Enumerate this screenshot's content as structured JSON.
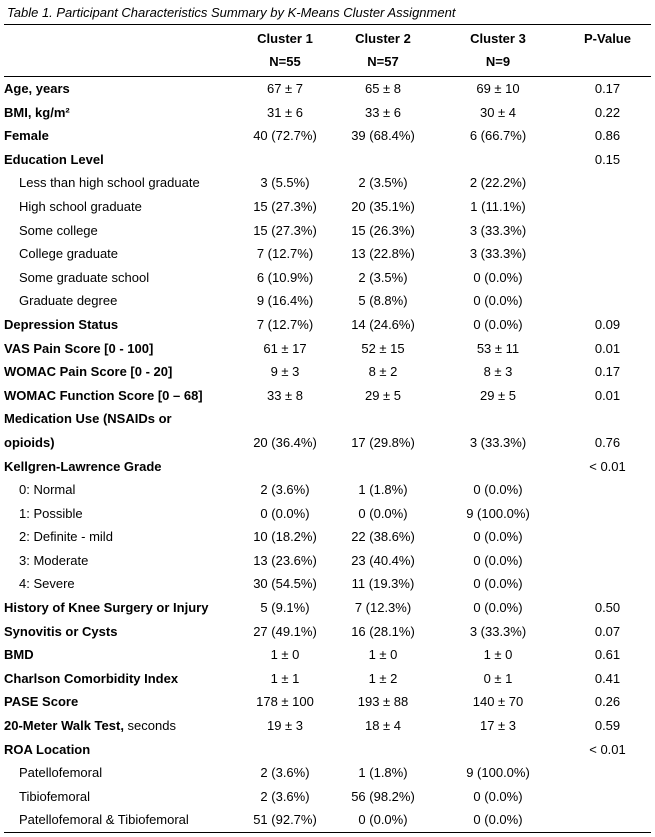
{
  "title": "Table 1. Participant Characteristics Summary by K-Means Cluster Assignment",
  "header": {
    "label_col": "",
    "cluster1": "Cluster 1\nN=55",
    "cluster2": "Cluster 2\nN=57",
    "cluster3": "Cluster 3\nN=9",
    "pvalue": "P-Value"
  },
  "rows": [
    {
      "label": "Age, years",
      "bold": true,
      "indent": false,
      "c1": "67 ± 7",
      "c2": "65 ± 8",
      "c3": "69 ± 10",
      "p": "0.17"
    },
    {
      "label": "BMI, kg/m²",
      "bold": true,
      "indent": false,
      "c1": "31 ± 6",
      "c2": "33 ± 6",
      "c3": "30 ± 4",
      "p": "0.22"
    },
    {
      "label": "Female",
      "bold": true,
      "indent": false,
      "c1": "40 (72.7%)",
      "c2": "39 (68.4%)",
      "c3": "6 (66.7%)",
      "p": "0.86"
    },
    {
      "label": "Education Level",
      "bold": true,
      "indent": false,
      "c1": "",
      "c2": "",
      "c3": "",
      "p": "0.15"
    },
    {
      "label": "Less than high school graduate",
      "bold": false,
      "indent": true,
      "c1": "3 (5.5%)",
      "c2": "2 (3.5%)",
      "c3": "2 (22.2%)",
      "p": ""
    },
    {
      "label": "High school graduate",
      "bold": false,
      "indent": true,
      "c1": "15 (27.3%)",
      "c2": "20 (35.1%)",
      "c3": "1 (11.1%)",
      "p": ""
    },
    {
      "label": "Some college",
      "bold": false,
      "indent": true,
      "c1": "15 (27.3%)",
      "c2": "15 (26.3%)",
      "c3": "3 (33.3%)",
      "p": ""
    },
    {
      "label": "College graduate",
      "bold": false,
      "indent": true,
      "c1": "7 (12.7%)",
      "c2": "13 (22.8%)",
      "c3": "3 (33.3%)",
      "p": ""
    },
    {
      "label": "Some graduate school",
      "bold": false,
      "indent": true,
      "c1": "6 (10.9%)",
      "c2": "2 (3.5%)",
      "c3": "0 (0.0%)",
      "p": ""
    },
    {
      "label": "Graduate degree",
      "bold": false,
      "indent": true,
      "c1": "9 (16.4%)",
      "c2": "5 (8.8%)",
      "c3": "0 (0.0%)",
      "p": ""
    },
    {
      "label": "Depression Status",
      "bold": true,
      "indent": false,
      "c1": "7 (12.7%)",
      "c2": "14 (24.6%)",
      "c3": "0 (0.0%)",
      "p": "0.09"
    },
    {
      "label": "VAS Pain Score [0 - 100]",
      "bold": true,
      "indent": false,
      "c1": "61 ± 17",
      "c2": "52 ± 15",
      "c3": "53 ± 11",
      "p": "0.01"
    },
    {
      "label": "WOMAC Pain Score [0 - 20]",
      "bold": true,
      "indent": false,
      "c1": "9 ± 3",
      "c2": "8 ± 2",
      "c3": "8 ± 3",
      "p": "0.17"
    },
    {
      "label": "WOMAC Function Score [0 – 68]",
      "bold": true,
      "indent": false,
      "c1": "33 ± 8",
      "c2": "29 ± 5",
      "c3": "29 ± 5",
      "p": "0.01"
    },
    {
      "label": "Medication Use (NSAIDs or\nopioids)",
      "bold": true,
      "indent": false,
      "c1": "20 (36.4%)",
      "c2": "17 (29.8%)",
      "c3": "3 (33.3%)",
      "p": "0.76"
    },
    {
      "label": "Kellgren-Lawrence Grade",
      "bold": true,
      "indent": false,
      "c1": "",
      "c2": "",
      "c3": "",
      "p": "< 0.01"
    },
    {
      "label": "0: Normal",
      "bold": false,
      "indent": true,
      "c1": "2 (3.6%)",
      "c2": "1 (1.8%)",
      "c3": "0 (0.0%)",
      "p": ""
    },
    {
      "label": "1: Possible",
      "bold": false,
      "indent": true,
      "c1": "0 (0.0%)",
      "c2": "0 (0.0%)",
      "c3": "9 (100.0%)",
      "p": ""
    },
    {
      "label": "2: Definite - mild",
      "bold": false,
      "indent": true,
      "c1": "10 (18.2%)",
      "c2": "22 (38.6%)",
      "c3": "0 (0.0%)",
      "p": ""
    },
    {
      "label": "3: Moderate",
      "bold": false,
      "indent": true,
      "c1": "13 (23.6%)",
      "c2": "23 (40.4%)",
      "c3": "0 (0.0%)",
      "p": ""
    },
    {
      "label": "4: Severe",
      "bold": false,
      "indent": true,
      "c1": "30 (54.5%)",
      "c2": "11 (19.3%)",
      "c3": "0 (0.0%)",
      "p": ""
    },
    {
      "label": "History of Knee Surgery or Injury",
      "bold": true,
      "indent": false,
      "c1": "5 (9.1%)",
      "c2": "7 (12.3%)",
      "c3": "0 (0.0%)",
      "p": "0.50"
    },
    {
      "label": "Synovitis or Cysts",
      "bold": true,
      "indent": false,
      "c1": "27 (49.1%)",
      "c2": "16 (28.1%)",
      "c3": "3 (33.3%)",
      "p": "0.07"
    },
    {
      "label": "BMD",
      "bold": true,
      "indent": false,
      "c1": "1 ± 0",
      "c2": "1 ± 0",
      "c3": "1 ± 0",
      "p": "0.61"
    },
    {
      "label": "Charlson Comorbidity Index",
      "bold": true,
      "indent": false,
      "c1": "1 ± 1",
      "c2": "1 ± 2",
      "c3": "0 ± 1",
      "p": "0.41"
    },
    {
      "label": "PASE Score",
      "bold": true,
      "indent": false,
      "c1": "178 ± 100",
      "c2": "193 ± 88",
      "c3": "140 ± 70",
      "p": "0.26"
    },
    {
      "label": "20-Meter Walk Test,",
      "label_regular": " seconds",
      "bold": true,
      "indent": false,
      "c1": "19 ± 3",
      "c2": "18 ± 4",
      "c3": "17 ± 3",
      "p": "0.59"
    },
    {
      "label": "ROA Location",
      "bold": true,
      "indent": false,
      "c1": "",
      "c2": "",
      "c3": "",
      "p": "< 0.01"
    },
    {
      "label": "Patellofemoral",
      "bold": false,
      "indent": true,
      "c1": "2 (3.6%)",
      "c2": "1 (1.8%)",
      "c3": "9 (100.0%)",
      "p": ""
    },
    {
      "label": "Tibiofemoral",
      "bold": false,
      "indent": true,
      "c1": "2 (3.6%)",
      "c2": "56 (98.2%)",
      "c3": "0 (0.0%)",
      "p": ""
    },
    {
      "label": "Patellofemoral & Tibiofemoral",
      "bold": false,
      "indent": true,
      "c1": "51 (92.7%)",
      "c2": "0 (0.0%)",
      "c3": "0 (0.0%)",
      "p": ""
    }
  ]
}
